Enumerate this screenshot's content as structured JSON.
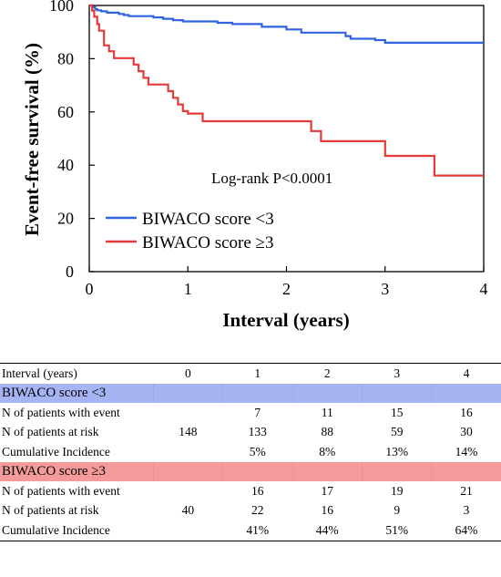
{
  "chart_data": {
    "type": "line",
    "ylabel": "Event-free survival (%)",
    "xlabel": "Interval (years)",
    "xlim": [
      0,
      4
    ],
    "ylim": [
      0,
      100
    ],
    "x_ticks": [
      "0",
      "1",
      "2",
      "3",
      "4"
    ],
    "y_ticks": [
      "0",
      "20",
      "40",
      "60",
      "80",
      "100"
    ],
    "annotation": "Log-rank P<0.0001",
    "legend_position": "bottom-left",
    "series": [
      {
        "name": "BIWACO score <3",
        "color": "#2f63e0",
        "x": [
          0,
          0.03,
          0.06,
          0.08,
          0.12,
          0.18,
          0.3,
          0.35,
          0.4,
          0.65,
          0.75,
          0.85,
          0.95,
          1.3,
          1.45,
          1.75,
          2.0,
          2.15,
          2.6,
          2.65,
          2.9,
          3.0,
          4.0
        ],
        "y": [
          100,
          99.3,
          98.6,
          98.2,
          97.8,
          97.3,
          96.8,
          96.4,
          96.0,
          95.5,
          95.0,
          94.5,
          94.0,
          93.5,
          93.0,
          92.0,
          91.0,
          89.8,
          88.5,
          87.5,
          87.0,
          86.0,
          86.0
        ]
      },
      {
        "name": "BIWACO score ≥3",
        "color": "#e53a3a",
        "x": [
          0,
          0.03,
          0.05,
          0.08,
          0.1,
          0.15,
          0.2,
          0.25,
          0.45,
          0.5,
          0.55,
          0.6,
          0.8,
          0.85,
          0.9,
          0.95,
          1.0,
          1.15,
          2.25,
          2.35,
          3.0,
          3.5,
          4.0
        ],
        "y": [
          100,
          98,
          95.8,
          93,
          90.5,
          85,
          82.8,
          80.2,
          77.8,
          75.3,
          72.8,
          70.3,
          67.8,
          65.3,
          62.8,
          60.3,
          59.4,
          56.5,
          52.8,
          49,
          43.5,
          36.1,
          36.1
        ]
      }
    ],
    "risk_table": {
      "header": [
        "Interval (years)",
        "0",
        "1",
        "2",
        "3",
        "4"
      ],
      "groups": [
        {
          "name": "BIWACO score <3",
          "color": "#a7b4f4",
          "rows": [
            {
              "label": "N of patients with event",
              "values": [
                "",
                "7",
                "11",
                "15",
                "16"
              ]
            },
            {
              "label": "N of patients at risk",
              "values": [
                "148",
                "133",
                "88",
                "59",
                "30"
              ]
            },
            {
              "label": "Cumulative Incidence",
              "values": [
                "",
                "5%",
                "8%",
                "13%",
                "14%"
              ]
            }
          ]
        },
        {
          "name": "BIWACO score ≥3",
          "color": "#f49a9a",
          "rows": [
            {
              "label": "N of patients with event",
              "values": [
                "",
                "16",
                "17",
                "19",
                "21"
              ]
            },
            {
              "label": "N of patients at risk",
              "values": [
                "40",
                "22",
                "16",
                "9",
                "3"
              ]
            },
            {
              "label": "Cumulative Incidence",
              "values": [
                "",
                "41%",
                "44%",
                "51%",
                "64%"
              ]
            }
          ]
        }
      ]
    }
  }
}
